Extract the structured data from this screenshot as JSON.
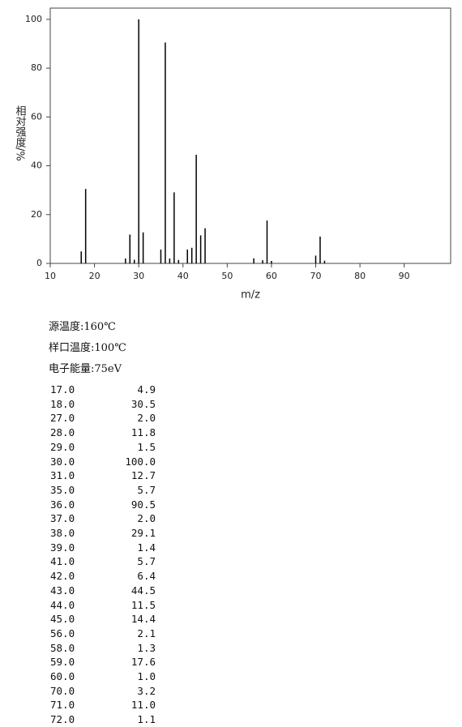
{
  "chart_data": {
    "type": "bar",
    "x_label": "m/z",
    "y_label": "相对强度/%",
    "x": [
      17,
      18,
      27,
      28,
      29,
      30,
      31,
      35,
      36,
      37,
      38,
      39,
      41,
      42,
      43,
      44,
      45,
      56,
      58,
      59,
      60,
      70,
      71,
      72
    ],
    "values": [
      4.9,
      30.5,
      2.0,
      11.8,
      1.5,
      100.0,
      12.7,
      5.7,
      90.5,
      2.0,
      29.1,
      1.4,
      5.7,
      6.4,
      44.5,
      11.5,
      14.4,
      2.1,
      1.3,
      17.6,
      1.0,
      3.2,
      11.0,
      1.1
    ],
    "color": "#000000",
    "xlim": [
      10,
      100.5
    ],
    "xticks": [
      10,
      20,
      30,
      40,
      50,
      60,
      70,
      80,
      90
    ],
    "ylim": [
      0,
      104.6
    ],
    "yticks": [
      0,
      20,
      40,
      60,
      80,
      100
    ]
  },
  "info": [
    "源温度:160℃",
    "样口温度:100℃",
    "电子能量:75eV"
  ],
  "peak_table": {
    "rows": [
      [
        "17.0",
        "4.9"
      ],
      [
        "18.0",
        "30.5"
      ],
      [
        "27.0",
        "2.0"
      ],
      [
        "28.0",
        "11.8"
      ],
      [
        "29.0",
        "1.5"
      ],
      [
        "30.0",
        "100.0"
      ],
      [
        "31.0",
        "12.7"
      ],
      [
        "35.0",
        "5.7"
      ],
      [
        "36.0",
        "90.5"
      ],
      [
        "37.0",
        "2.0"
      ],
      [
        "38.0",
        "29.1"
      ],
      [
        "39.0",
        "1.4"
      ],
      [
        "41.0",
        "5.7"
      ],
      [
        "42.0",
        "6.4"
      ],
      [
        "43.0",
        "44.5"
      ],
      [
        "44.0",
        "11.5"
      ],
      [
        "45.0",
        "14.4"
      ],
      [
        "56.0",
        "2.1"
      ],
      [
        "58.0",
        "1.3"
      ],
      [
        "59.0",
        "17.6"
      ],
      [
        "60.0",
        "1.0"
      ],
      [
        "70.0",
        "3.2"
      ],
      [
        "71.0",
        "11.0"
      ],
      [
        "72.0",
        "1.1"
      ]
    ]
  }
}
